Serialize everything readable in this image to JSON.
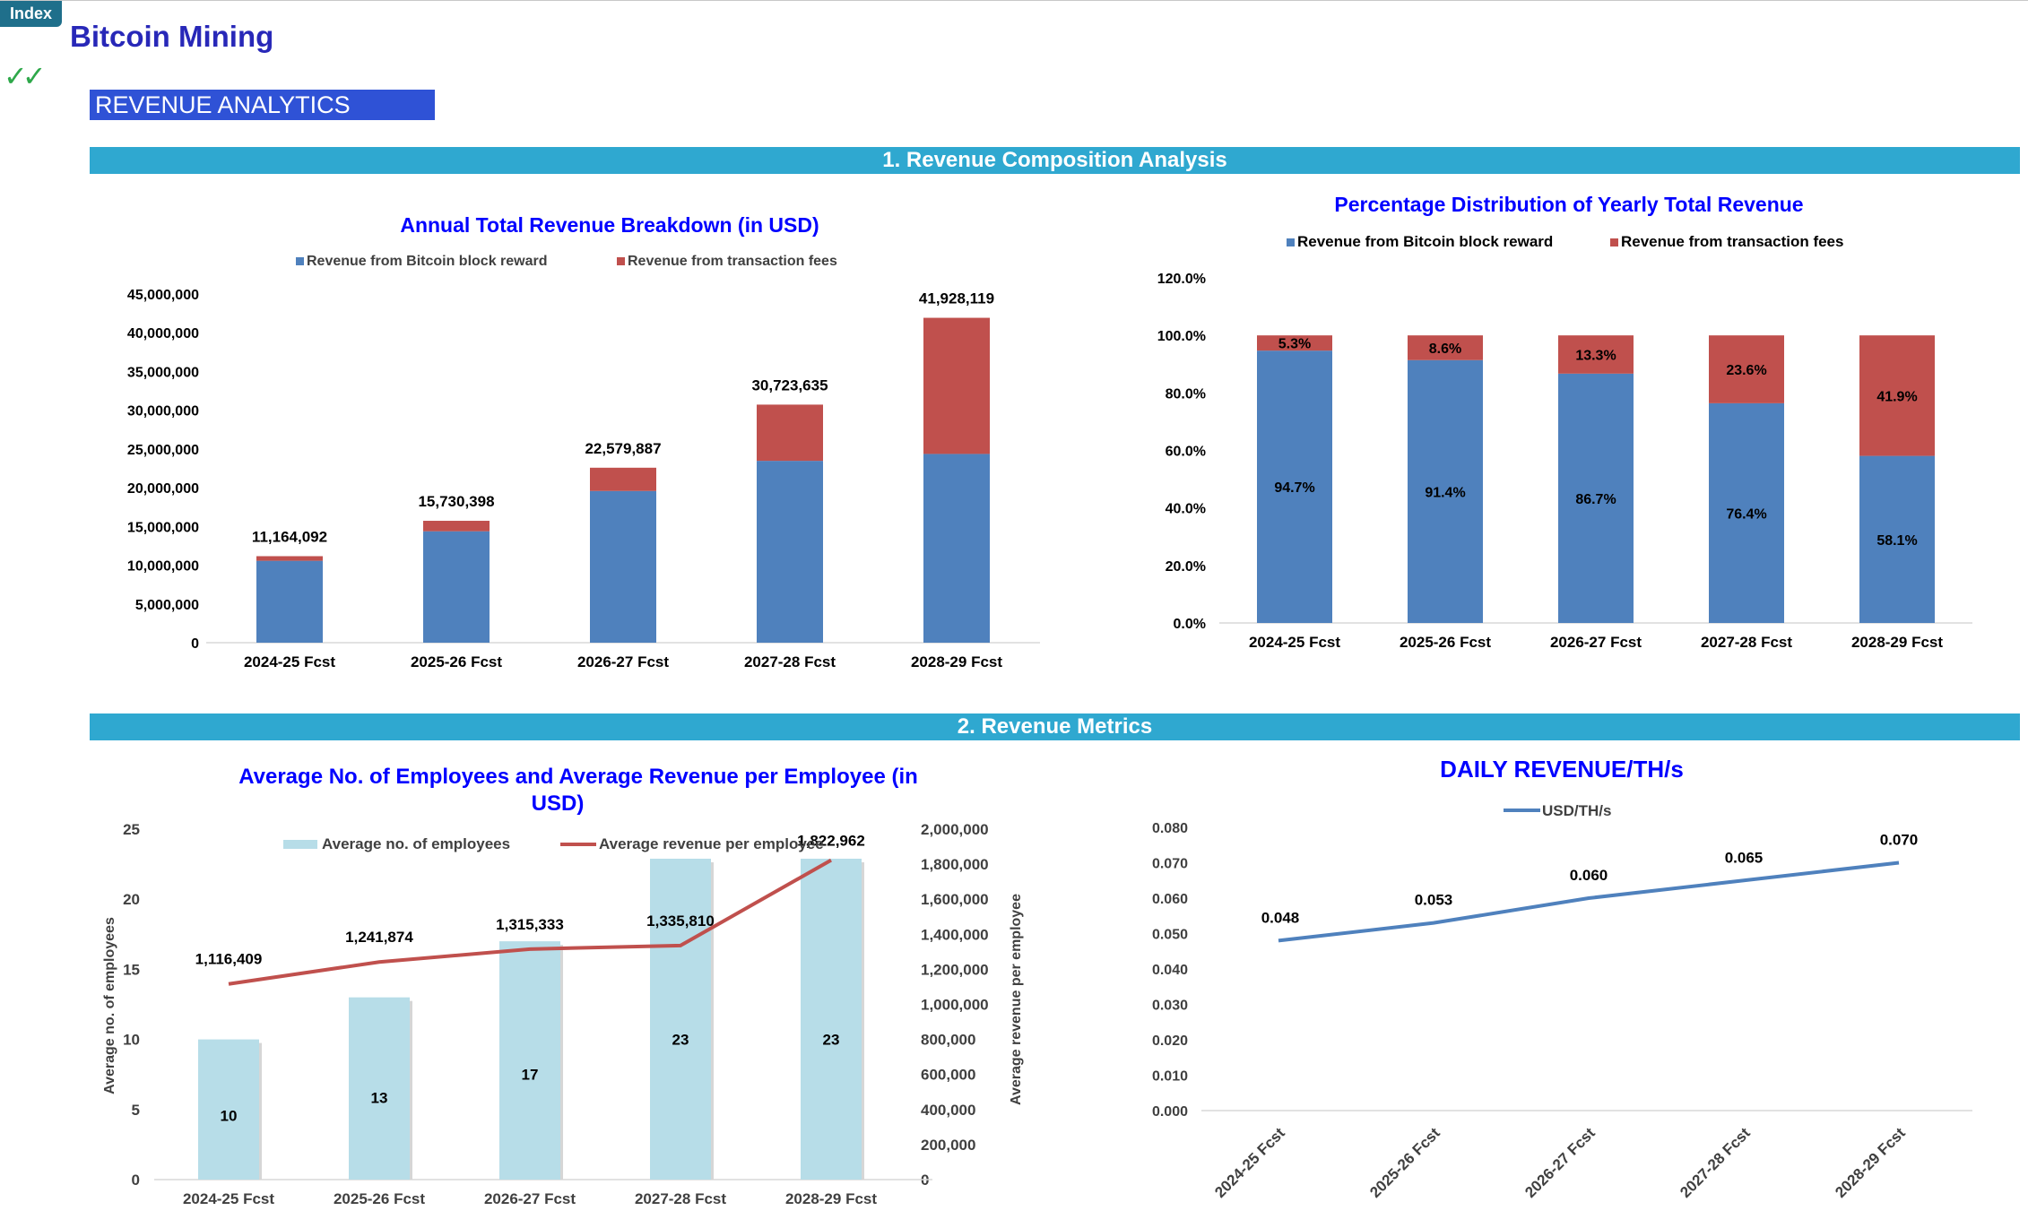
{
  "index_button": "Index",
  "title": "Bitcoin Mining",
  "checkmarks": "✓✓",
  "banner": "REVENUE ANALYTICS",
  "sections": {
    "s1": "1. Revenue Composition Analysis",
    "s2": "2. Revenue Metrics"
  },
  "colors": {
    "block": "#4f81bd",
    "fees": "#c0504d",
    "employees": "#b7dde8",
    "line": "#c0504d",
    "daily": "#4f81bd",
    "chart_title": "#0000ff"
  },
  "chart_data": [
    {
      "type": "bar",
      "stacked": true,
      "title": "Annual Total Revenue Breakdown (in USD)",
      "categories": [
        "2024-25 Fcst",
        "2025-26 Fcst",
        "2026-27 Fcst",
        "2027-28 Fcst",
        "2028-29 Fcst"
      ],
      "series": [
        {
          "name": "Revenue from Bitcoin block reward",
          "values": [
            10570000,
            14380000,
            19580000,
            23470000,
            24360000
          ]
        },
        {
          "name": "Revenue from transaction fees",
          "values": [
            594092,
            1350398,
            2999887,
            7253635,
            17568119
          ]
        }
      ],
      "totals": [
        11164092,
        15730398,
        22579887,
        30723635,
        41928119
      ],
      "total_labels": [
        "11,164,092",
        "15,730,398",
        "22,579,887",
        "30,723,635",
        "41,928,119"
      ],
      "y_ticks": [
        "0",
        "5,000,000",
        "10,000,000",
        "15,000,000",
        "20,000,000",
        "25,000,000",
        "30,000,000",
        "35,000,000",
        "40,000,000",
        "45,000,000"
      ],
      "ylim": [
        0,
        45000000
      ],
      "legend": "top"
    },
    {
      "type": "bar",
      "stacked": true,
      "percent": true,
      "title": "Percentage Distribution of Yearly Total Revenue",
      "categories": [
        "2024-25 Fcst",
        "2025-26 Fcst",
        "2026-27 Fcst",
        "2027-28 Fcst",
        "2028-29 Fcst"
      ],
      "series": [
        {
          "name": "Revenue from Bitcoin block reward",
          "values": [
            94.7,
            91.4,
            86.7,
            76.4,
            58.1
          ],
          "labels": [
            "94.7%",
            "91.4%",
            "86.7%",
            "76.4%",
            "58.1%"
          ]
        },
        {
          "name": "Revenue from transaction fees",
          "values": [
            5.3,
            8.6,
            13.3,
            23.6,
            41.9
          ],
          "labels": [
            "5.3%",
            "8.6%",
            "13.3%",
            "23.6%",
            "41.9%"
          ]
        }
      ],
      "y_ticks": [
        "0.0%",
        "20.0%",
        "40.0%",
        "60.0%",
        "80.0%",
        "100.0%",
        "120.0%"
      ],
      "ylim": [
        0,
        120
      ],
      "legend": "top"
    },
    {
      "type": "bar",
      "combo": "bar+line",
      "title": "Average No. of Employees and Average Revenue per Employee (in USD)",
      "categories": [
        "2024-25 Fcst",
        "2025-26 Fcst",
        "2026-27 Fcst",
        "2027-28 Fcst",
        "2028-29 Fcst"
      ],
      "bar_series": {
        "name": "Average no. of employees",
        "values": [
          10,
          13,
          17,
          23,
          23
        ],
        "labels": [
          "10",
          "13",
          "17",
          "23",
          "23"
        ]
      },
      "line_series": {
        "name": "Average revenue per employee",
        "values": [
          1116409,
          1241874,
          1315333,
          1335810,
          1822962
        ],
        "labels": [
          "1,116,409",
          "1,241,874",
          "1,315,333",
          "1,335,810",
          "1,822,962"
        ]
      },
      "ylabel_left": "Average no. of  employees",
      "ylabel_right": "Average revenue per employee",
      "y_left_ticks": [
        "0",
        "5",
        "10",
        "15",
        "20",
        "25"
      ],
      "ylim_left": [
        0,
        25
      ],
      "y_right_ticks": [
        "0",
        "200,000",
        "400,000",
        "600,000",
        "800,000",
        "1,000,000",
        "1,200,000",
        "1,400,000",
        "1,600,000",
        "1,800,000",
        "2,000,000"
      ],
      "ylim_right": [
        0,
        2000000
      ],
      "legend": "top"
    },
    {
      "type": "line",
      "title": "DAILY REVENUE/TH/s",
      "categories": [
        "2024-25 Fcst",
        "2025-26 Fcst",
        "2026-27 Fcst",
        "2027-28 Fcst",
        "2028-29 Fcst"
      ],
      "series": [
        {
          "name": "USD/TH/s",
          "values": [
            0.048,
            0.053,
            0.06,
            0.065,
            0.07
          ],
          "labels": [
            "0.048",
            "0.053",
            "0.060",
            "0.065",
            "0.070"
          ]
        }
      ],
      "y_ticks": [
        "0.000",
        "0.010",
        "0.020",
        "0.030",
        "0.040",
        "0.050",
        "0.060",
        "0.070",
        "0.080"
      ],
      "ylim": [
        0,
        0.08
      ],
      "legend": "top"
    }
  ]
}
